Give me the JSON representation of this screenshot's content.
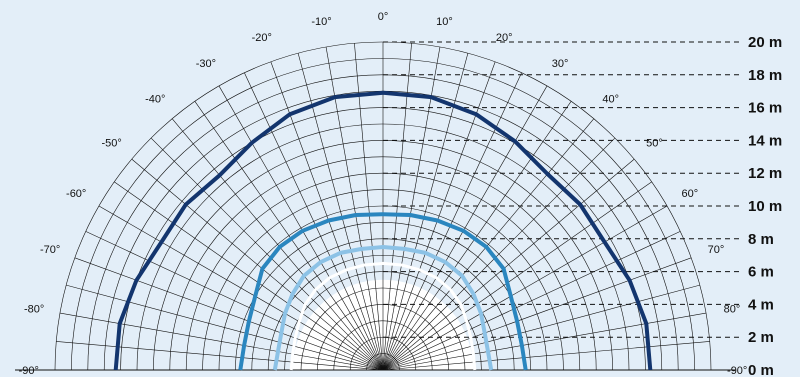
{
  "chart_data": {
    "type": "polar",
    "angle_labels": [
      "-90°",
      "-80°",
      "-70°",
      "-60°",
      "-50°",
      "-40°",
      "-30°",
      "-20°",
      "-10°",
      "0°",
      "10°",
      "20°",
      "30°",
      "40°",
      "50°",
      "60°",
      "70°",
      "80°",
      "-90°"
    ],
    "angles": [
      -90,
      -80,
      -70,
      -60,
      -50,
      -40,
      -30,
      -20,
      -10,
      0,
      10,
      20,
      30,
      40,
      50,
      60,
      70,
      80,
      90
    ],
    "radial_ticks": [
      0,
      2,
      4,
      6,
      8,
      10,
      12,
      14,
      16,
      18,
      20
    ],
    "radial_labels": [
      "0 m",
      "2 m",
      "4 m",
      "6 m",
      "8 m",
      "10 m",
      "12 m",
      "14 m",
      "16 m",
      "18 m",
      "20 m"
    ],
    "rlim": [
      0,
      20
    ],
    "grid": true,
    "colors": {
      "background": "#e3eef8",
      "white_fill": "#ffffff",
      "grid": "#111111",
      "outer": "#13356e",
      "mid": "#2a86bf",
      "light": "#8cc2e6"
    },
    "series": [
      {
        "color": "#13356e",
        "width": 4,
        "angles": [
          -90,
          -80,
          -70,
          -60,
          -50,
          -40,
          -30,
          -20,
          -10,
          0,
          10,
          20,
          30,
          40,
          50,
          60,
          70,
          80,
          90
        ],
        "r": [
          16.3,
          16.3,
          16.0,
          15.6,
          15.7,
          15.5,
          16.0,
          16.6,
          16.9,
          16.9,
          16.9,
          16.6,
          16.1,
          15.6,
          15.7,
          15.6,
          16.0,
          16.3,
          16.3
        ]
      },
      {
        "color": "#2a86bf",
        "width": 4,
        "angles": [
          -90,
          -80,
          -70,
          -60,
          -50,
          -40,
          -30,
          -20,
          -10,
          0,
          10,
          20,
          30,
          40,
          50,
          60,
          70,
          80,
          90
        ],
        "r": [
          8.7,
          8.6,
          8.7,
          9.0,
          9.6,
          9.8,
          9.8,
          9.7,
          9.6,
          9.5,
          9.6,
          9.7,
          9.8,
          9.8,
          9.6,
          9.0,
          8.7,
          8.6,
          8.7
        ]
      },
      {
        "color": "#8cc2e6",
        "width": 4,
        "angles": [
          -90,
          -80,
          -70,
          -60,
          -50,
          -40,
          -30,
          -20,
          -10,
          0,
          10,
          20,
          30,
          40,
          50,
          60,
          70,
          80,
          90
        ],
        "r": [
          6.6,
          6.5,
          6.6,
          6.9,
          7.2,
          7.5,
          7.6,
          7.6,
          7.5,
          7.5,
          7.5,
          7.6,
          7.6,
          7.5,
          7.2,
          6.9,
          6.6,
          6.5,
          6.6
        ]
      },
      {
        "color": "#ffffff",
        "width": 3,
        "angles": [
          -90,
          -80,
          -70,
          -60,
          -50,
          -40,
          -30,
          -20,
          -10,
          0,
          10,
          20,
          30,
          40,
          50,
          60,
          70,
          80,
          90
        ],
        "r": [
          5.6,
          5.6,
          5.7,
          5.9,
          6.2,
          6.4,
          6.5,
          6.5,
          6.5,
          6.5,
          6.5,
          6.5,
          6.5,
          6.4,
          6.2,
          5.9,
          5.7,
          5.6,
          5.6
        ]
      }
    ],
    "white_fill_r": 5.5
  }
}
